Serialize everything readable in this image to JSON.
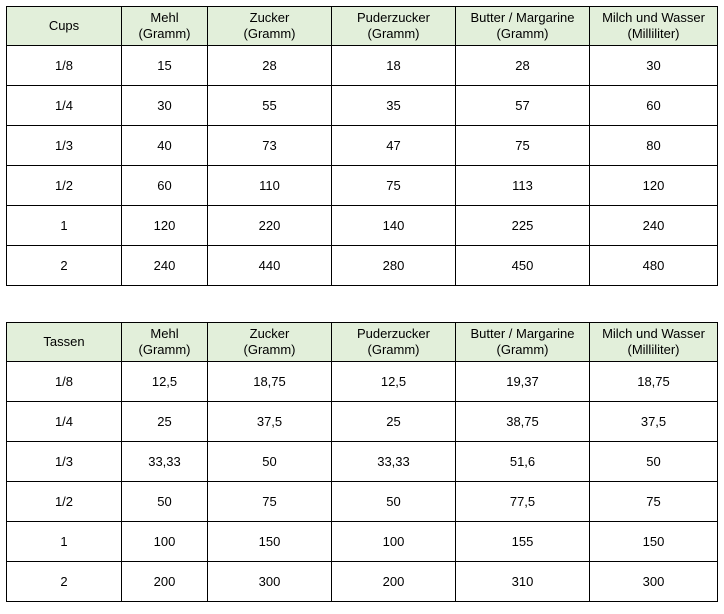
{
  "tables": [
    {
      "header": [
        [
          "Cups"
        ],
        [
          "Mehl",
          "(Gramm)"
        ],
        [
          "Zucker",
          "(Gramm)"
        ],
        [
          "Puderzucker",
          "(Gramm)"
        ],
        [
          "Butter / Margarine",
          "(Gramm)"
        ],
        [
          "Milch und Wasser",
          "(Milliliter)"
        ]
      ],
      "rows": [
        [
          "1/8",
          "15",
          "28",
          "18",
          "28",
          "30"
        ],
        [
          "1/4",
          "30",
          "55",
          "35",
          "57",
          "60"
        ],
        [
          "1/3",
          "40",
          "73",
          "47",
          "75",
          "80"
        ],
        [
          "1/2",
          "60",
          "110",
          "75",
          "113",
          "120"
        ],
        [
          "1",
          "120",
          "220",
          "140",
          "225",
          "240"
        ],
        [
          "2",
          "240",
          "440",
          "280",
          "450",
          "480"
        ]
      ]
    },
    {
      "header": [
        [
          "Tassen"
        ],
        [
          "Mehl",
          "(Gramm)"
        ],
        [
          "Zucker",
          "(Gramm)"
        ],
        [
          "Puderzucker",
          "(Gramm)"
        ],
        [
          "Butter / Margarine",
          "(Gramm)"
        ],
        [
          "Milch und Wasser",
          "(Milliliter)"
        ]
      ],
      "rows": [
        [
          "1/8",
          "12,5",
          "18,75",
          "12,5",
          "19,37",
          "18,75"
        ],
        [
          "1/4",
          "25",
          "37,5",
          "25",
          "38,75",
          "37,5"
        ],
        [
          "1/3",
          "33,33",
          "50",
          "33,33",
          "51,6",
          "50"
        ],
        [
          "1/2",
          "50",
          "75",
          "50",
          "77,5",
          "75"
        ],
        [
          "1",
          "100",
          "150",
          "100",
          "155",
          "150"
        ],
        [
          "2",
          "200",
          "300",
          "200",
          "310",
          "300"
        ]
      ]
    }
  ]
}
